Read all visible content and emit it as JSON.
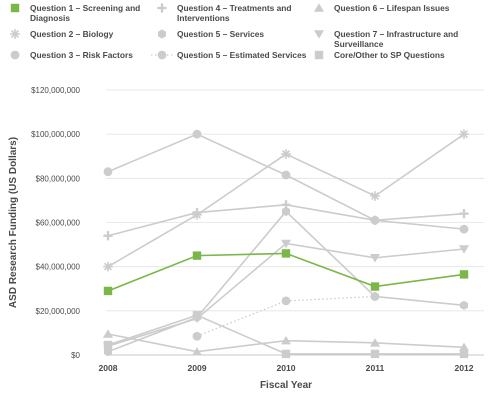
{
  "chart_data": {
    "type": "line",
    "title": "",
    "xlabel": "Fiscal Year",
    "ylabel": "ASD Research Funding (US Dollars)",
    "x": [
      "2008",
      "2009",
      "2010",
      "2011",
      "2012"
    ],
    "ylim": [
      0,
      120000000
    ],
    "yticks": [
      0,
      20000000,
      40000000,
      60000000,
      80000000,
      100000000,
      120000000
    ],
    "ytick_labels": [
      "$0",
      "$20,000,000",
      "$40,000,000",
      "$60,000,000",
      "$80,000,000",
      "$100,000,000",
      "$120,000,000"
    ],
    "grid": "horizontal",
    "legend_position": "top",
    "series": [
      {
        "name": "Question 1 – Screening and Diagnosis",
        "marker": "square",
        "color": "#7ab648",
        "style": "solid",
        "values": [
          29000000,
          45000000,
          46000000,
          31000000,
          36500000
        ]
      },
      {
        "name": "Question 2 – Biology",
        "marker": "asterisk",
        "color": "#cccccc",
        "style": "solid",
        "values": [
          40000000,
          63500000,
          91000000,
          72000000,
          100000000
        ]
      },
      {
        "name": "Question 3 – Risk Factors",
        "marker": "circle",
        "color": "#cccccc",
        "style": "solid",
        "values": [
          83000000,
          100000000,
          81500000,
          61000000,
          57000000
        ]
      },
      {
        "name": "Question 4 – Treatments and Interventions",
        "marker": "plus",
        "color": "#cccccc",
        "style": "solid",
        "values": [
          54000000,
          64500000,
          68000000,
          61000000,
          64000000
        ]
      },
      {
        "name": "Question 5 – Services",
        "marker": "hexagon",
        "color": "#cccccc",
        "style": "solid",
        "values": [
          1500000,
          17000000,
          65000000,
          26500000,
          22500000
        ]
      },
      {
        "name": "Question 5 – Estimated Services",
        "marker": "circle",
        "color": "#cccccc",
        "style": "dotted",
        "values": [
          null,
          8500000,
          24500000,
          26500000,
          null
        ]
      },
      {
        "name": "Question 6 – Lifespan Issues",
        "marker": "triangle-up",
        "color": "#cccccc",
        "style": "solid",
        "values": [
          9500000,
          1500000,
          6500000,
          5500000,
          3500000
        ]
      },
      {
        "name": "Question 7 – Infrastructure and Surveillance",
        "marker": "triangle-down",
        "color": "#cccccc",
        "style": "solid",
        "values": [
          4000000,
          16500000,
          50500000,
          44000000,
          48000000
        ]
      },
      {
        "name": "Core/Other to SP Questions",
        "marker": "square",
        "color": "#cccccc",
        "style": "solid",
        "values": [
          4500000,
          18000000,
          500000,
          500000,
          500000
        ]
      }
    ],
    "legend": [
      {
        "series": 0,
        "lines": [
          "Question 1 – Screening and",
          "Diagnosis"
        ]
      },
      {
        "series": 3,
        "lines": [
          "Question 4 – Treatments and",
          "Interventions"
        ]
      },
      {
        "series": 6,
        "lines": [
          "Question 6 – Lifespan Issues"
        ]
      },
      {
        "series": 1,
        "lines": [
          "Question 2 – Biology"
        ]
      },
      {
        "series": 4,
        "lines": [
          "Question 5 – Services"
        ]
      },
      {
        "series": 7,
        "lines": [
          "Question 7 – Infrastructure and",
          "Surveillance"
        ]
      },
      {
        "series": 2,
        "lines": [
          "Question 3 – Risk Factors"
        ]
      },
      {
        "series": 5,
        "lines": [
          "Question 5 – Estimated Services"
        ]
      },
      {
        "series": 8,
        "lines": [
          "Core/Other to SP Questions"
        ]
      }
    ]
  }
}
